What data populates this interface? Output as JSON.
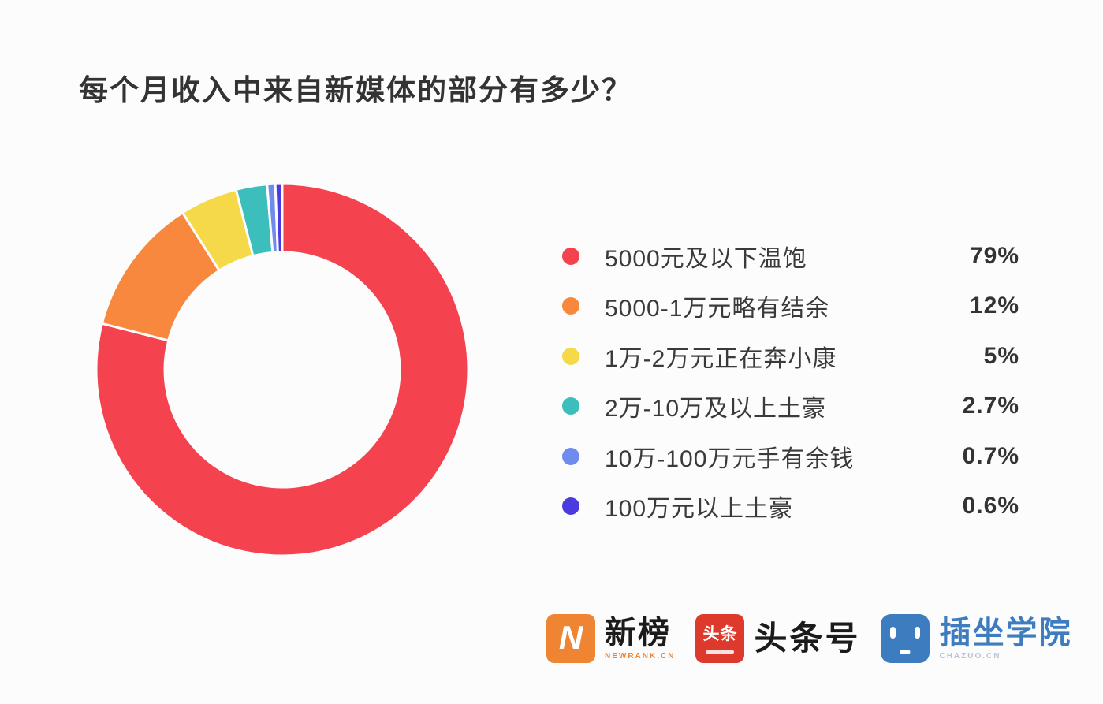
{
  "page": {
    "background": "#fcfcfc"
  },
  "title": "每个月收入中来自新媒体的部分有多少？",
  "chart_data": {
    "type": "pie",
    "variant": "donut",
    "title": "每个月收入中来自新媒体的部分有多少？",
    "legend_position": "right",
    "start_angle": "12 o'clock, clockwise",
    "inner_radius_ratio": 0.63,
    "gap_color": "#fcfcfc",
    "items": [
      {
        "label": "5000元及以下温饱",
        "value": 79,
        "pct_label": "79%",
        "color": "#f4424f"
      },
      {
        "label": "5000-1万元略有结余",
        "value": 12,
        "pct_label": "12%",
        "color": "#f7883d"
      },
      {
        "label": "1万-2万元正在奔小康",
        "value": 5,
        "pct_label": "5%",
        "color": "#f6d949"
      },
      {
        "label": "2万-10万及以上土豪",
        "value": 2.7,
        "pct_label": "2.7%",
        "color": "#3cbebd"
      },
      {
        "label": "10万-100万元手有余钱",
        "value": 0.7,
        "pct_label": "0.7%",
        "color": "#6f8bee"
      },
      {
        "label": "100万元以上土豪",
        "value": 0.6,
        "pct_label": "0.6%",
        "color": "#4a3be0"
      }
    ]
  },
  "footer": {
    "logos": [
      {
        "name": "newrank",
        "badge_letter": "N",
        "text": "新榜",
        "subtext": "NEWRANK.CN",
        "brand_color": "#ef8532"
      },
      {
        "name": "toutiao",
        "badge_text": "头条",
        "text": "头条号",
        "brand_color": "#dd392d"
      },
      {
        "name": "chazuo",
        "text": "插坐学院",
        "subtext": "CHAZUO.CN",
        "brand_color": "#3d7cbf"
      }
    ]
  }
}
